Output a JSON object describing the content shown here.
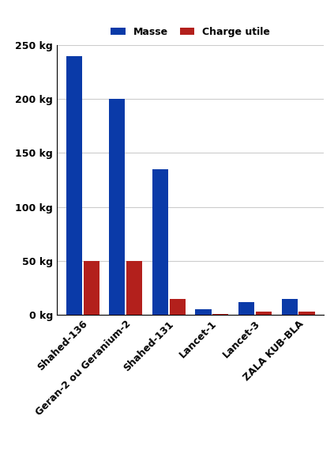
{
  "chart_data": {
    "type": "bar",
    "categories": [
      "Shahed-136",
      "Geran-2 ou Geranium-2",
      "Shahed-131",
      "Lancet-1",
      "Lancet-3",
      "ZALA KUB-BLA"
    ],
    "series": [
      {
        "name": "Masse",
        "color": "#0a3aa8",
        "values": [
          240,
          200,
          135,
          5,
          12,
          15
        ]
      },
      {
        "name": "Charge utile",
        "color": "#b3201c",
        "values": [
          50,
          50,
          15,
          1,
          3,
          3
        ]
      }
    ],
    "ylim": [
      0,
      250
    ],
    "yticks": [
      {
        "value": 0,
        "label": "0 kg"
      },
      {
        "value": 50,
        "label": "50 kg"
      },
      {
        "value": 100,
        "label": "100 kg"
      },
      {
        "value": 150,
        "label": "150 kg"
      },
      {
        "value": 200,
        "label": "200 kg"
      },
      {
        "value": 250,
        "label": "250 kg"
      }
    ],
    "grid": true,
    "legend": "upper center"
  }
}
